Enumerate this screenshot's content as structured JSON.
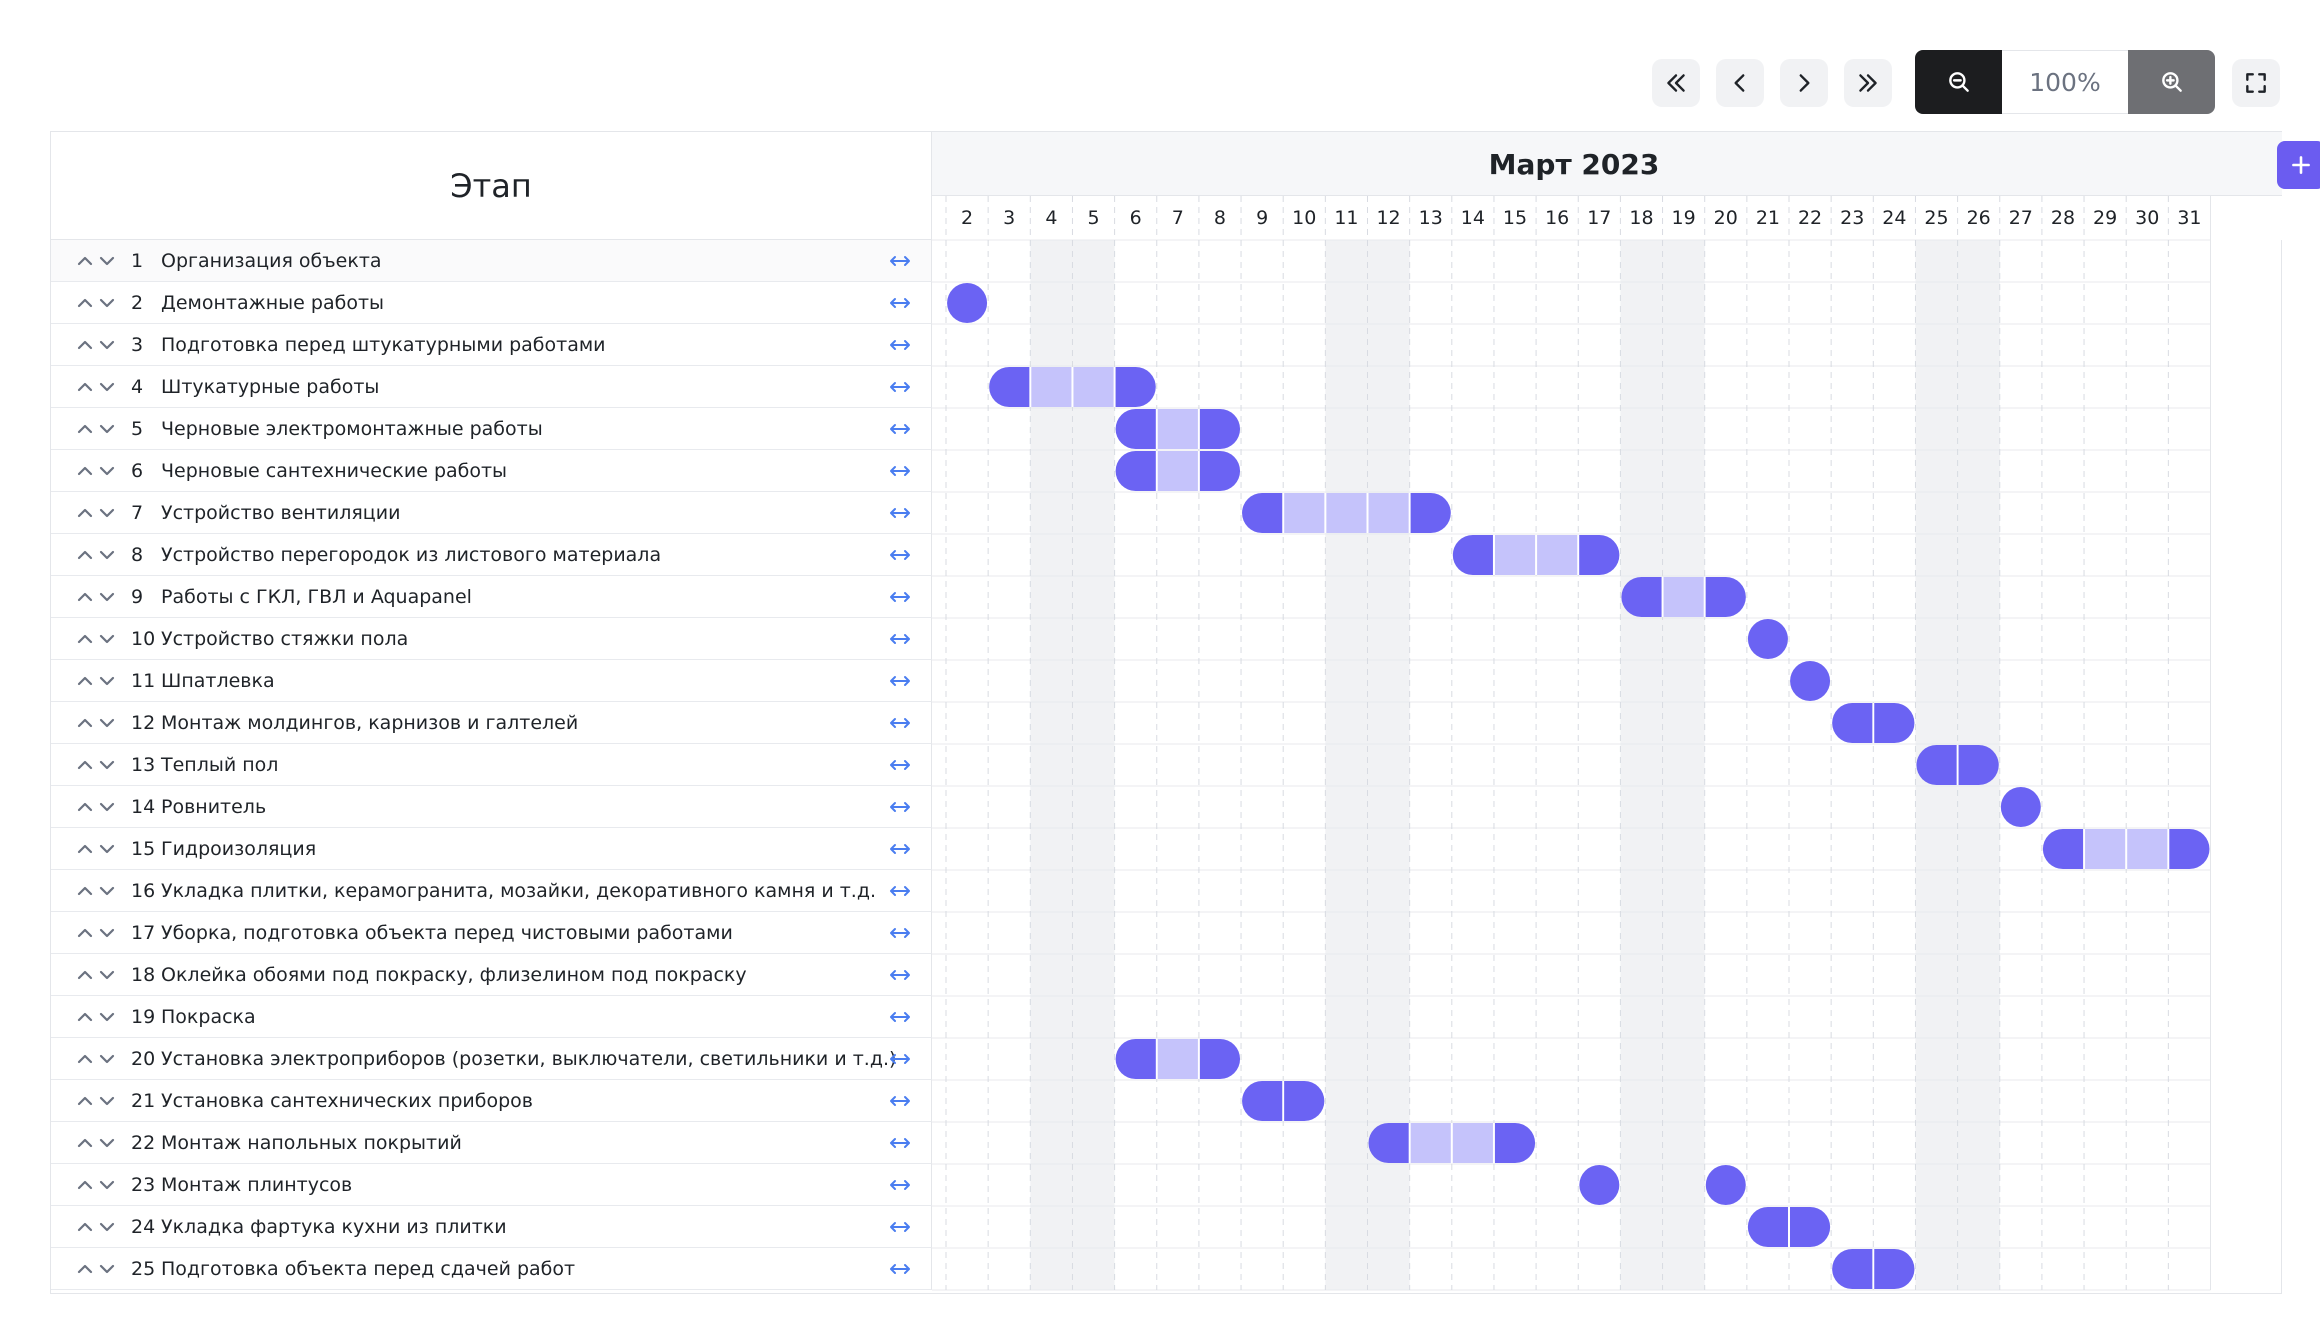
{
  "toolbar": {
    "zoom_level": "100%"
  },
  "table": {
    "stage_header": "Этап",
    "month_title": "Март 2023",
    "days": [
      "2",
      "3",
      "4",
      "5",
      "6",
      "7",
      "8",
      "9",
      "10",
      "11",
      "12",
      "13",
      "14",
      "15",
      "16",
      "17",
      "18",
      "19",
      "20",
      "21",
      "22",
      "23",
      "24",
      "25",
      "26",
      "27",
      "28",
      "29",
      "30",
      "31"
    ],
    "weekend_days": [
      "4",
      "5",
      "11",
      "12",
      "18",
      "19",
      "25",
      "26"
    ]
  },
  "stages": [
    {
      "num": "1",
      "name": "Организация объекта",
      "bars": []
    },
    {
      "num": "2",
      "name": "Демонтажные работы",
      "bars": [
        [
          "2",
          "2"
        ]
      ]
    },
    {
      "num": "3",
      "name": "Подготовка перед штукатурными работами",
      "bars": []
    },
    {
      "num": "4",
      "name": "Штукатурные работы",
      "bars": [
        [
          "3",
          "6"
        ]
      ]
    },
    {
      "num": "5",
      "name": "Черновые электромонтажные работы",
      "bars": [
        [
          "6",
          "8"
        ]
      ]
    },
    {
      "num": "6",
      "name": "Черновые сантехнические работы",
      "bars": [
        [
          "6",
          "8"
        ]
      ]
    },
    {
      "num": "7",
      "name": "Устройство вентиляции",
      "bars": [
        [
          "9",
          "13"
        ]
      ]
    },
    {
      "num": "8",
      "name": "Устройство перегородок из листового материала",
      "bars": [
        [
          "14",
          "17"
        ]
      ]
    },
    {
      "num": "9",
      "name": "Работы с ГКЛ, ГВЛ и Aquapanel",
      "bars": [
        [
          "18",
          "20"
        ]
      ]
    },
    {
      "num": "10",
      "name": "Устройство стяжки пола",
      "bars": [
        [
          "21",
          "21"
        ]
      ]
    },
    {
      "num": "11",
      "name": "Шпатлевка",
      "bars": [
        [
          "22",
          "22"
        ]
      ]
    },
    {
      "num": "12",
      "name": "Монтаж молдингов, карнизов и галтелей",
      "bars": [
        [
          "23",
          "24"
        ]
      ]
    },
    {
      "num": "13",
      "name": "Теплый пол",
      "bars": [
        [
          "25",
          "26"
        ]
      ]
    },
    {
      "num": "14",
      "name": "Ровнитель",
      "bars": [
        [
          "27",
          "27"
        ]
      ]
    },
    {
      "num": "15",
      "name": "Гидроизоляция",
      "bars": [
        [
          "28",
          "31"
        ]
      ]
    },
    {
      "num": "16",
      "name": "Укладка плитки, керамогранита, мозайки, декоративного камня и т.д.",
      "bars": []
    },
    {
      "num": "17",
      "name": "Уборка, подготовка объекта перед чистовыми работами",
      "bars": []
    },
    {
      "num": "18",
      "name": "Оклейка обоями под покраску, флизелином под покраску",
      "bars": []
    },
    {
      "num": "19",
      "name": "Покраска",
      "bars": []
    },
    {
      "num": "20",
      "name": "Установка электроприборов (розетки, выключатели, светильники и т.д.)",
      "bars": [
        [
          "6",
          "8"
        ]
      ]
    },
    {
      "num": "21",
      "name": "Установка сантехнических приборов",
      "bars": [
        [
          "9",
          "10"
        ]
      ]
    },
    {
      "num": "22",
      "name": "Монтаж напольных покрытий",
      "bars": [
        [
          "12",
          "15"
        ]
      ]
    },
    {
      "num": "23",
      "name": "Монтаж плинтусов",
      "bars": [
        [
          "17",
          "17"
        ],
        [
          "20",
          "20"
        ]
      ]
    },
    {
      "num": "24",
      "name": "Укладка фартука кухни из плитки",
      "bars": [
        [
          "21",
          "22"
        ]
      ]
    },
    {
      "num": "25",
      "name": "Подготовка объекта перед сдачей работ",
      "bars": [
        [
          "23",
          "24"
        ]
      ]
    }
  ],
  "colors": {
    "bar_end": "#6b63f3",
    "bar_mid": "#c5c3fb",
    "weekend": "#f1f2f4",
    "accent": "#6b5cf0",
    "link": "#4a7df0"
  },
  "icons": {
    "first": "double-chevron-left-icon",
    "prev": "chevron-left-icon",
    "next": "chevron-right-icon",
    "last": "double-chevron-right-icon",
    "zoom_out": "zoom-out-icon",
    "zoom_in": "zoom-in-icon",
    "fullscreen": "fullscreen-icon",
    "add": "plus-icon",
    "move_up": "chevron-up-icon",
    "move_down": "chevron-down-icon",
    "link": "horizontal-arrows-icon"
  }
}
